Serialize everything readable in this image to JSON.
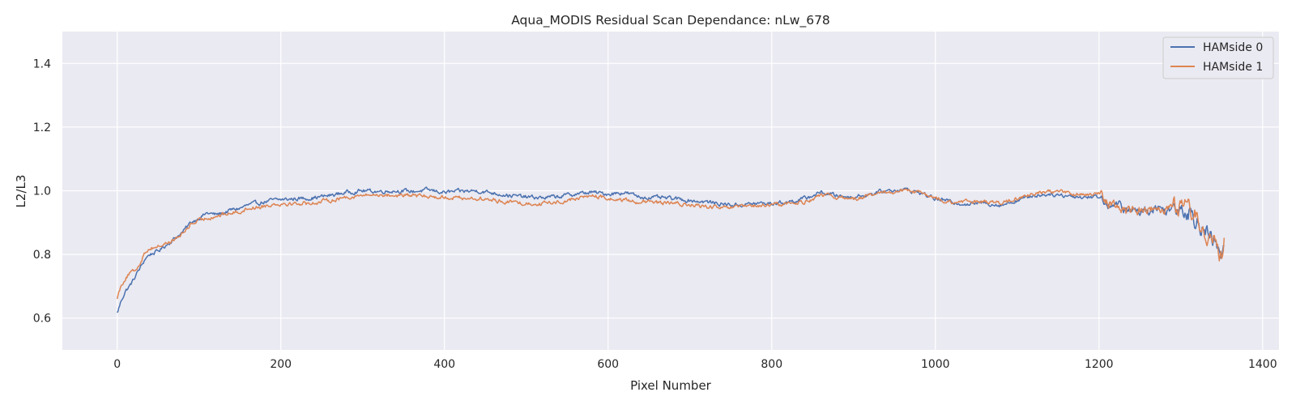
{
  "chart_data": {
    "type": "line",
    "title": "Aqua_MODIS Residual Scan Dependance: nLw_678",
    "xlabel": "Pixel Number",
    "ylabel": "L2/L3",
    "xlim": [
      -67,
      1420
    ],
    "ylim": [
      0.5,
      1.5
    ],
    "xticks": [
      0,
      200,
      400,
      600,
      800,
      1000,
      1200,
      1400
    ],
    "yticks": [
      0.6,
      0.8,
      1.0,
      1.2,
      1.4
    ],
    "xtick_labels": [
      "0",
      "200",
      "400",
      "600",
      "800",
      "1000",
      "1200",
      "1400"
    ],
    "ytick_labels": [
      "0.6",
      "0.8",
      "1.0",
      "1.2",
      "1.4"
    ],
    "grid": true,
    "legend_position": "top-right",
    "series": [
      {
        "name": "HAMside 0",
        "color": "#4c72b0",
        "x": [
          0,
          5,
          10,
          15,
          20,
          25,
          30,
          35,
          40,
          50,
          60,
          70,
          80,
          90,
          100,
          110,
          120,
          130,
          140,
          150,
          160,
          170,
          180,
          190,
          200,
          220,
          240,
          260,
          280,
          300,
          320,
          340,
          360,
          380,
          400,
          420,
          440,
          460,
          480,
          500,
          520,
          540,
          560,
          580,
          600,
          620,
          640,
          660,
          680,
          700,
          720,
          740,
          760,
          780,
          800,
          820,
          840,
          860,
          880,
          900,
          920,
          940,
          960,
          980,
          1000,
          1020,
          1040,
          1060,
          1080,
          1100,
          1120,
          1140,
          1160,
          1180,
          1200,
          1210,
          1220,
          1230,
          1240,
          1250,
          1260,
          1270,
          1280,
          1290,
          1300,
          1310,
          1320,
          1330,
          1340,
          1345,
          1350,
          1353
        ],
        "y": [
          0.615,
          0.655,
          0.685,
          0.7,
          0.72,
          0.745,
          0.765,
          0.79,
          0.8,
          0.81,
          0.83,
          0.85,
          0.87,
          0.9,
          0.915,
          0.93,
          0.925,
          0.93,
          0.94,
          0.945,
          0.955,
          0.96,
          0.965,
          0.97,
          0.972,
          0.975,
          0.978,
          0.985,
          0.995,
          1.0,
          0.998,
          1.0,
          0.998,
          1.002,
          0.995,
          0.998,
          1.0,
          0.993,
          0.985,
          0.98,
          0.978,
          0.982,
          0.99,
          0.995,
          0.99,
          0.995,
          0.98,
          0.978,
          0.975,
          0.97,
          0.965,
          0.958,
          0.955,
          0.96,
          0.96,
          0.965,
          0.975,
          0.995,
          0.985,
          0.98,
          0.99,
          1.0,
          1.005,
          0.995,
          0.975,
          0.965,
          0.958,
          0.962,
          0.955,
          0.97,
          0.985,
          0.99,
          0.985,
          0.98,
          0.982,
          0.96,
          0.955,
          0.945,
          0.935,
          0.938,
          0.94,
          0.948,
          0.94,
          0.945,
          0.955,
          0.935,
          0.91,
          0.87,
          0.84,
          0.815,
          0.8,
          0.82
        ]
      },
      {
        "name": "HAMside 1",
        "color": "#dd8452",
        "x": [
          0,
          5,
          10,
          15,
          20,
          25,
          30,
          35,
          40,
          50,
          60,
          70,
          80,
          90,
          100,
          110,
          120,
          130,
          140,
          150,
          160,
          170,
          180,
          190,
          200,
          220,
          240,
          260,
          280,
          300,
          320,
          340,
          360,
          380,
          400,
          420,
          440,
          460,
          480,
          500,
          520,
          540,
          560,
          580,
          600,
          620,
          640,
          660,
          680,
          700,
          720,
          740,
          760,
          780,
          800,
          820,
          840,
          860,
          880,
          900,
          920,
          940,
          960,
          980,
          1000,
          1020,
          1040,
          1060,
          1080,
          1100,
          1120,
          1140,
          1160,
          1180,
          1200,
          1210,
          1220,
          1230,
          1240,
          1250,
          1260,
          1270,
          1280,
          1290,
          1300,
          1310,
          1320,
          1330,
          1340,
          1345,
          1350,
          1353
        ],
        "y": [
          0.665,
          0.705,
          0.725,
          0.74,
          0.745,
          0.76,
          0.785,
          0.81,
          0.82,
          0.825,
          0.835,
          0.845,
          0.865,
          0.895,
          0.905,
          0.915,
          0.92,
          0.925,
          0.93,
          0.935,
          0.945,
          0.948,
          0.952,
          0.958,
          0.96,
          0.96,
          0.962,
          0.97,
          0.98,
          0.985,
          0.988,
          0.985,
          0.985,
          0.982,
          0.98,
          0.978,
          0.975,
          0.97,
          0.965,
          0.96,
          0.96,
          0.965,
          0.975,
          0.985,
          0.975,
          0.97,
          0.965,
          0.962,
          0.96,
          0.955,
          0.95,
          0.945,
          0.948,
          0.952,
          0.955,
          0.96,
          0.965,
          0.985,
          0.98,
          0.975,
          0.985,
          0.995,
          1.0,
          0.995,
          0.975,
          0.962,
          0.965,
          0.968,
          0.96,
          0.975,
          0.99,
          1.0,
          0.995,
          0.985,
          0.99,
          0.97,
          0.958,
          0.94,
          0.935,
          0.94,
          0.945,
          0.95,
          0.945,
          0.95,
          0.96,
          0.94,
          0.915,
          0.88,
          0.845,
          0.8,
          0.78,
          0.85
        ]
      }
    ]
  }
}
